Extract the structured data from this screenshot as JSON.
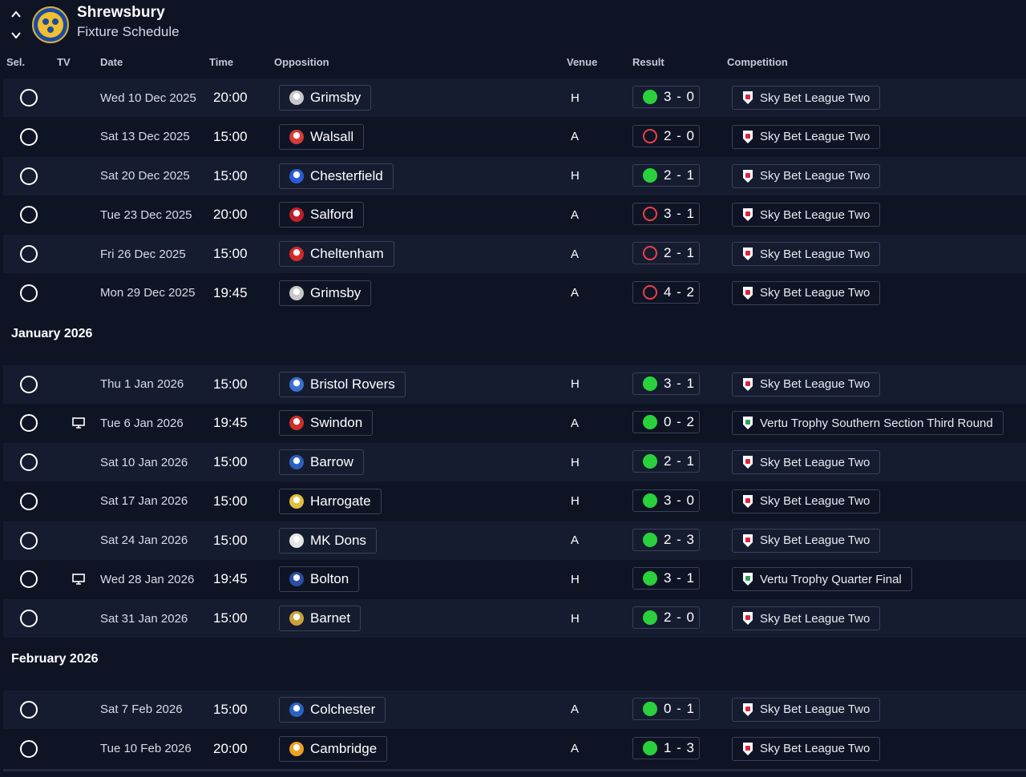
{
  "header": {
    "team_name": "Shrewsbury",
    "page_title": "Fixture Schedule",
    "crest_icon": "shrewsbury-crest-icon"
  },
  "columns": {
    "sel": "Sel.",
    "tv": "TV",
    "date": "Date",
    "time": "Time",
    "opposition": "Opposition",
    "venue": "Venue",
    "result": "Result",
    "competition": "Competition"
  },
  "sections": [
    {
      "title": "",
      "fixtures": [
        {
          "tv": false,
          "date": "Wed 10 Dec 2025",
          "time": "20:00",
          "opposition": "Grimsby",
          "venue": "H",
          "result": "3 - 0",
          "outcome": "win",
          "competition": "Sky Bet League Two"
        },
        {
          "tv": false,
          "date": "Sat 13 Dec 2025",
          "time": "15:00",
          "opposition": "Walsall",
          "venue": "A",
          "result": "2 - 0",
          "outcome": "loss",
          "competition": "Sky Bet League Two"
        },
        {
          "tv": false,
          "date": "Sat 20 Dec 2025",
          "time": "15:00",
          "opposition": "Chesterfield",
          "venue": "H",
          "result": "2 - 1",
          "outcome": "win",
          "competition": "Sky Bet League Two"
        },
        {
          "tv": false,
          "date": "Tue 23 Dec 2025",
          "time": "20:00",
          "opposition": "Salford",
          "venue": "A",
          "result": "3 - 1",
          "outcome": "loss",
          "competition": "Sky Bet League Two"
        },
        {
          "tv": false,
          "date": "Fri 26 Dec 2025",
          "time": "15:00",
          "opposition": "Cheltenham",
          "venue": "A",
          "result": "2 - 1",
          "outcome": "loss",
          "competition": "Sky Bet League Two"
        },
        {
          "tv": false,
          "date": "Mon 29 Dec 2025",
          "time": "19:45",
          "opposition": "Grimsby",
          "venue": "A",
          "result": "4 - 2",
          "outcome": "loss",
          "competition": "Sky Bet League Two"
        }
      ]
    },
    {
      "title": "January 2026",
      "fixtures": [
        {
          "tv": false,
          "date": "Thu 1 Jan 2026",
          "time": "15:00",
          "opposition": "Bristol Rovers",
          "venue": "H",
          "result": "3 - 1",
          "outcome": "win",
          "competition": "Sky Bet League Two"
        },
        {
          "tv": true,
          "date": "Tue 6 Jan 2026",
          "time": "19:45",
          "opposition": "Swindon",
          "venue": "A",
          "result": "0 - 2",
          "outcome": "win",
          "competition": "Vertu Trophy Southern Section Third Round"
        },
        {
          "tv": false,
          "date": "Sat 10 Jan 2026",
          "time": "15:00",
          "opposition": "Barrow",
          "venue": "H",
          "result": "2 - 1",
          "outcome": "win",
          "competition": "Sky Bet League Two"
        },
        {
          "tv": false,
          "date": "Sat 17 Jan 2026",
          "time": "15:00",
          "opposition": "Harrogate",
          "venue": "H",
          "result": "3 - 0",
          "outcome": "win",
          "competition": "Sky Bet League Two"
        },
        {
          "tv": false,
          "date": "Sat 24 Jan 2026",
          "time": "15:00",
          "opposition": "MK Dons",
          "venue": "A",
          "result": "2 - 3",
          "outcome": "win",
          "competition": "Sky Bet League Two"
        },
        {
          "tv": true,
          "date": "Wed 28 Jan 2026",
          "time": "19:45",
          "opposition": "Bolton",
          "venue": "H",
          "result": "3 - 1",
          "outcome": "win",
          "competition": "Vertu Trophy Quarter Final"
        },
        {
          "tv": false,
          "date": "Sat 31 Jan 2026",
          "time": "15:00",
          "opposition": "Barnet",
          "venue": "H",
          "result": "2 - 0",
          "outcome": "win",
          "competition": "Sky Bet League Two"
        }
      ]
    },
    {
      "title": "February 2026",
      "fixtures": [
        {
          "tv": false,
          "date": "Sat 7 Feb 2026",
          "time": "15:00",
          "opposition": "Colchester",
          "venue": "A",
          "result": "0 - 1",
          "outcome": "win",
          "competition": "Sky Bet League Two"
        },
        {
          "tv": false,
          "date": "Tue 10 Feb 2026",
          "time": "20:00",
          "opposition": "Cambridge",
          "venue": "A",
          "result": "1 - 3",
          "outcome": "win",
          "competition": "Sky Bet League Two"
        }
      ]
    }
  ],
  "colors": {
    "win": "#2ad13d",
    "loss": "#e8404a",
    "row_alt": "#161c30",
    "background": "#0f1425"
  },
  "team_badge_colors": {
    "Grimsby": "#c8c8c8",
    "Walsall": "#d93a3a",
    "Chesterfield": "#2a5bd7",
    "Salford": "#c0202a",
    "Cheltenham": "#d42a2a",
    "Bristol Rovers": "#3b6fd1",
    "Swindon": "#d0302a",
    "Barrow": "#2d5fbf",
    "Harrogate": "#e0c040",
    "MK Dons": "#e6e6e6",
    "Bolton": "#2b4ea8",
    "Barnet": "#c9a23a",
    "Colchester": "#2a62c4",
    "Cambridge": "#f0a020"
  },
  "competition_badge_colors": {
    "Sky Bet League Two": "#d7263d",
    "Vertu Trophy": "#2f9e5a"
  }
}
